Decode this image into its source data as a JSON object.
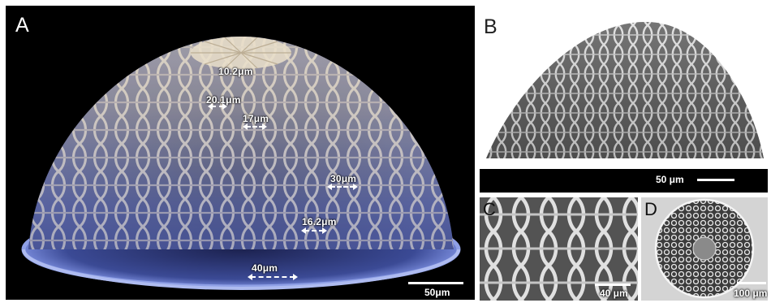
{
  "panels": {
    "a": {
      "letter": "A",
      "scale_label": "50μm"
    },
    "b": {
      "letter": "B",
      "scale_label": "50 μm"
    },
    "c": {
      "letter": "C",
      "scale_label": "40 μm"
    },
    "d": {
      "letter": "D",
      "scale_label": "100 μm"
    }
  },
  "measurements": [
    {
      "label": "10.2μm"
    },
    {
      "label": "20.1μm"
    },
    {
      "label": "17μm"
    },
    {
      "label": "30μm"
    },
    {
      "label": "16.2μm"
    },
    {
      "label": "40μm"
    }
  ],
  "colors": {
    "background_a": "#000000",
    "dome_top": "#e8dcc4",
    "dome_bottom": "#5a6fb8",
    "sem_gray": "#a0a0a0",
    "annotation": "#ffffff"
  }
}
